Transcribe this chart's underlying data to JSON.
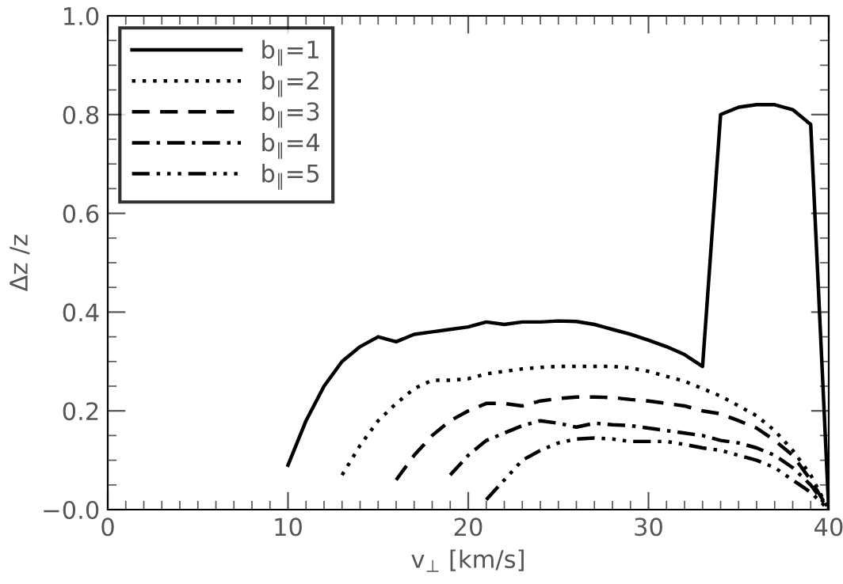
{
  "chart_data": {
    "type": "line",
    "xlabel": "v$_{⊥}$ [km/s]",
    "ylabel": "Δz /z",
    "xlim": [
      0,
      40
    ],
    "xticks": [
      0,
      10,
      20,
      30,
      40
    ],
    "ylim": [
      0,
      1
    ],
    "yticks": [
      {
        "value": 0,
        "label": "−0.0"
      },
      {
        "value": 0.2,
        "label": "0.2"
      },
      {
        "value": 0.4,
        "label": "0.4"
      },
      {
        "value": 0.6,
        "label": "0.6"
      },
      {
        "value": 0.8,
        "label": "0.8"
      },
      {
        "value": 1.0,
        "label": "1.0"
      }
    ],
    "legend": "top left",
    "grid": false,
    "marker": "none",
    "series": [
      {
        "name": "b$_{∥}$=1",
        "color": "#000000",
        "line_style": "solid",
        "x": [
          10,
          11,
          12,
          13,
          14,
          15,
          16,
          17,
          18,
          19,
          20,
          21,
          22,
          23,
          24,
          25,
          26,
          27,
          28,
          29,
          30,
          31,
          32,
          33,
          34,
          35,
          36,
          37,
          38,
          39,
          40
        ],
        "values": [
          0.09,
          0.18,
          0.25,
          0.3,
          0.33,
          0.35,
          0.34,
          0.355,
          0.36,
          0.365,
          0.37,
          0.38,
          0.375,
          0.38,
          0.38,
          0.382,
          0.381,
          0.375,
          0.365,
          0.355,
          0.343,
          0.33,
          0.314,
          0.29,
          0.8,
          0.815,
          0.82,
          0.82,
          0.81,
          0.78,
          0.0
        ]
      },
      {
        "name": "b$_{∥}$=2",
        "color": "#000000",
        "line_style": "dotted",
        "x": [
          13,
          14,
          15,
          16,
          17,
          18,
          19,
          20,
          21,
          22,
          23,
          24,
          25,
          26,
          27,
          28,
          29,
          30,
          31,
          32,
          33,
          34,
          35,
          36,
          37,
          38,
          39,
          40
        ],
        "values": [
          0.07,
          0.13,
          0.18,
          0.215,
          0.245,
          0.262,
          0.262,
          0.265,
          0.275,
          0.28,
          0.285,
          0.288,
          0.29,
          0.29,
          0.29,
          0.29,
          0.287,
          0.28,
          0.27,
          0.26,
          0.245,
          0.23,
          0.21,
          0.19,
          0.16,
          0.12,
          0.07,
          0.0
        ]
      },
      {
        "name": "b$_{∥}$=3",
        "color": "#000000",
        "line_style": "dashed",
        "x": [
          16,
          17,
          18,
          19,
          20,
          21,
          22,
          23,
          24,
          25,
          26,
          27,
          28,
          29,
          30,
          31,
          32,
          33,
          34,
          35,
          36,
          37,
          38,
          39,
          40
        ],
        "values": [
          0.06,
          0.11,
          0.15,
          0.18,
          0.2,
          0.215,
          0.215,
          0.21,
          0.22,
          0.225,
          0.228,
          0.228,
          0.227,
          0.223,
          0.22,
          0.215,
          0.21,
          0.2,
          0.194,
          0.18,
          0.165,
          0.14,
          0.11,
          0.06,
          0.0
        ]
      },
      {
        "name": "b$_{∥}$=4",
        "color": "#000000",
        "line_style": "dashdot",
        "x": [
          19,
          20,
          21,
          22,
          23,
          24,
          25,
          26,
          27,
          28,
          29,
          30,
          31,
          32,
          33,
          34,
          35,
          36,
          37,
          38,
          39,
          40
        ],
        "values": [
          0.07,
          0.11,
          0.14,
          0.155,
          0.17,
          0.18,
          0.175,
          0.167,
          0.175,
          0.172,
          0.17,
          0.165,
          0.16,
          0.155,
          0.15,
          0.14,
          0.135,
          0.125,
          0.11,
          0.085,
          0.05,
          0.0
        ]
      },
      {
        "name": "b$_{∥}$=5",
        "color": "#000000",
        "line_style": "dashdotdot",
        "x": [
          21,
          22,
          23,
          24,
          25,
          26,
          27,
          28,
          29,
          30,
          31,
          32,
          33,
          34,
          35,
          36,
          37,
          38,
          39,
          40
        ],
        "values": [
          0.02,
          0.06,
          0.1,
          0.12,
          0.135,
          0.143,
          0.145,
          0.143,
          0.138,
          0.138,
          0.138,
          0.132,
          0.125,
          0.12,
          0.11,
          0.1,
          0.085,
          0.06,
          0.035,
          0.0
        ]
      }
    ]
  }
}
